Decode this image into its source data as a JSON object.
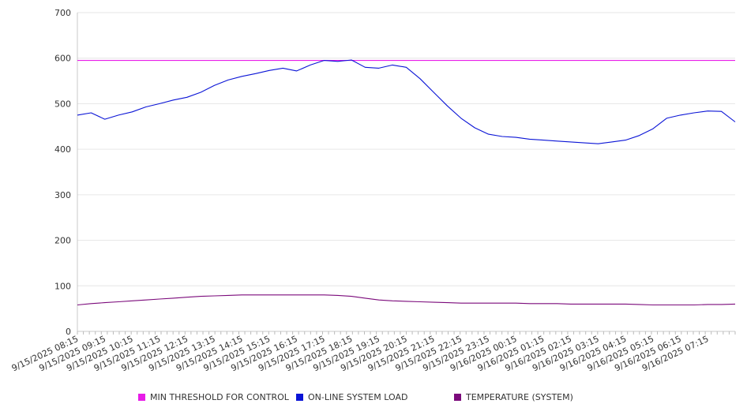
{
  "chart_data": {
    "type": "line",
    "title": "",
    "xlabel": "",
    "ylabel": "",
    "ylim": [
      0,
      700
    ],
    "yticks": [
      0,
      100,
      200,
      300,
      400,
      500,
      600,
      700
    ],
    "grid": true,
    "legend_position": "bottom",
    "x_tick_labels": [
      "9/15/2025 08:15",
      "9/15/2025 09:15",
      "9/15/2025 10:15",
      "9/15/2025 11:15",
      "9/15/2025 12:15",
      "9/15/2025 13:15",
      "9/15/2025 14:15",
      "9/15/2025 15:15",
      "9/15/2025 16:15",
      "9/15/2025 17:15",
      "9/15/2025 18:15",
      "9/15/2025 19:15",
      "9/15/2025 20:15",
      "9/15/2025 21:15",
      "9/15/2025 22:15",
      "9/15/2025 23:15",
      "9/16/2025 00:15",
      "9/16/2025 01:15",
      "9/16/2025 02:15",
      "9/16/2025 03:15",
      "9/16/2025 04:15",
      "9/16/2025 05:15",
      "9/16/2025 06:15",
      "9/16/2025 07:15"
    ],
    "x_hours": [
      0,
      0.5,
      1,
      1.5,
      2,
      2.5,
      3,
      3.5,
      4,
      4.5,
      5,
      5.5,
      6,
      6.5,
      7,
      7.5,
      8,
      8.5,
      9,
      9.5,
      10,
      10.5,
      11,
      11.5,
      12,
      12.5,
      13,
      13.5,
      14,
      14.5,
      15,
      15.5,
      16,
      16.5,
      17,
      17.5,
      18,
      18.5,
      19,
      19.5,
      20,
      20.5,
      21,
      21.5,
      22,
      22.5,
      23,
      23.5,
      24
    ],
    "series": [
      {
        "name": "MIN THRESHOLD FOR CONTROL",
        "color": "#e81ce8",
        "values": [
          595,
          595,
          595,
          595,
          595,
          595,
          595,
          595,
          595,
          595,
          595,
          595,
          595,
          595,
          595,
          595,
          595,
          595,
          595,
          595,
          595,
          595,
          595,
          595,
          595,
          595,
          595,
          595,
          595,
          595,
          595,
          595,
          595,
          595,
          595,
          595,
          595,
          595,
          595,
          595,
          595,
          595,
          595,
          595,
          595,
          595,
          595,
          595,
          595
        ]
      },
      {
        "name": "ON-LINE SYSTEM LOAD",
        "color": "#0a14d6",
        "values": [
          475,
          480,
          466,
          475,
          482,
          493,
          500,
          508,
          514,
          525,
          540,
          552,
          560,
          566,
          573,
          578,
          572,
          585,
          595,
          593,
          596,
          580,
          578,
          585,
          580,
          555,
          525,
          495,
          468,
          447,
          433,
          428,
          426,
          422,
          420,
          418,
          416,
          414,
          412,
          416,
          420,
          430,
          445,
          468,
          475,
          480,
          484,
          483,
          460
        ]
      },
      {
        "name": "TEMPERATURE (SYSTEM)",
        "color": "#7b0a7b",
        "values": [
          58,
          61,
          63,
          65,
          67,
          69,
          71,
          73,
          75,
          77,
          78,
          79,
          80,
          80,
          80,
          80,
          80,
          80,
          80,
          79,
          77,
          73,
          69,
          67,
          66,
          65,
          64,
          63,
          62,
          62,
          62,
          62,
          62,
          61,
          61,
          61,
          60,
          60,
          60,
          60,
          60,
          59,
          58,
          58,
          58,
          58,
          59,
          59,
          60
        ]
      }
    ]
  }
}
